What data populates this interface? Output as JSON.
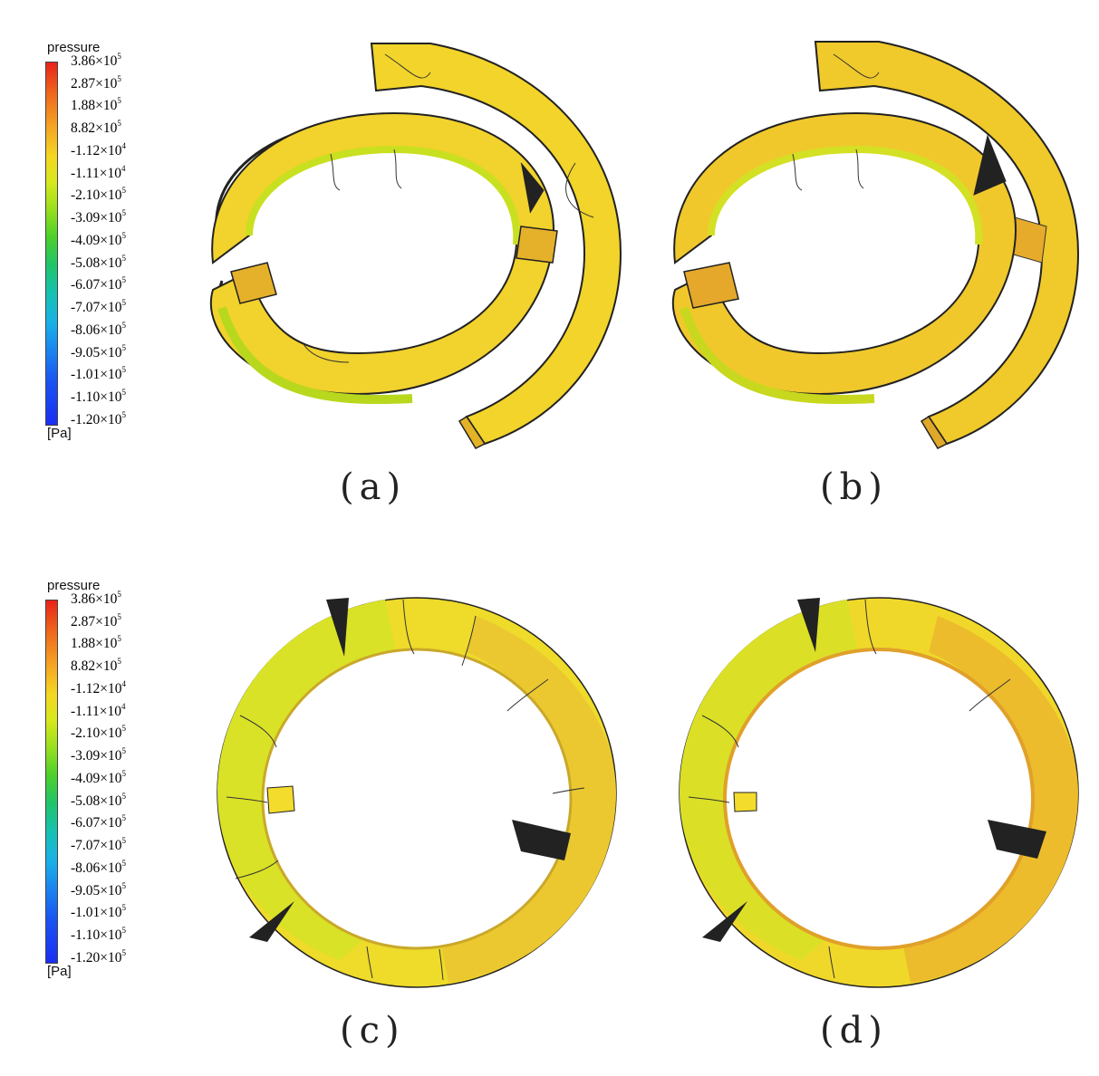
{
  "legend": {
    "title": "pressure",
    "unit": "[Pa]",
    "ticks": [
      {
        "m": "3.86×10",
        "e": "5"
      },
      {
        "m": "2.87×10",
        "e": "5"
      },
      {
        "m": "1.88×10",
        "e": "5"
      },
      {
        "m": "8.82×10",
        "e": "5"
      },
      {
        "m": "-1.12×10",
        "e": "4"
      },
      {
        "m": "-1.11×10",
        "e": "4"
      },
      {
        "m": "-2.10×10",
        "e": "5"
      },
      {
        "m": "-3.09×10",
        "e": "5"
      },
      {
        "m": "-4.09×10",
        "e": "5"
      },
      {
        "m": "-5.08×10",
        "e": "5"
      },
      {
        "m": "-6.07×10",
        "e": "5"
      },
      {
        "m": "-7.07×10",
        "e": "5"
      },
      {
        "m": "-8.06×10",
        "e": "5"
      },
      {
        "m": "-9.05×10",
        "e": "5"
      },
      {
        "m": "-1.01×10",
        "e": "5"
      },
      {
        "m": "-1.10×10",
        "e": "5"
      },
      {
        "m": "-1.20×10",
        "e": "5"
      }
    ]
  },
  "panels": {
    "a": {
      "caption": "(a)"
    },
    "b": {
      "caption": "(b)"
    },
    "c": {
      "caption": "(c)"
    },
    "d": {
      "caption": "(d)"
    }
  },
  "colors": {
    "yellow": "#f2dc2a",
    "orange": "#eeb52a",
    "green": "#c5e21f",
    "deep_green": "#7fcf1f",
    "edge": "#222222"
  }
}
